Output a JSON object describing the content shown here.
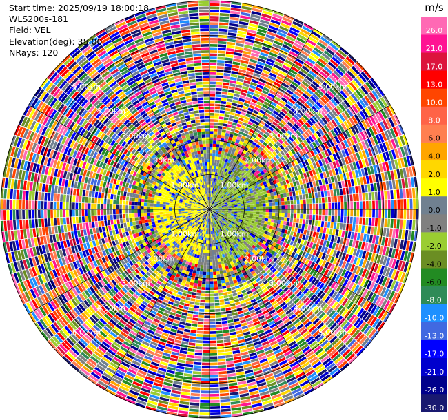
{
  "header": {
    "start_time": "Start time: 2025/09/19 18:00:18",
    "instrument": "WLS200s-181",
    "field": "Field: VEL",
    "elevation": "Elevation(deg): 35.00",
    "nrays": "NRays: 120"
  },
  "chart_data": {
    "type": "heatmap",
    "projection": "polar-ppi",
    "field": "VEL",
    "units": "m/s",
    "elevation_deg": 35.0,
    "n_rays": 120,
    "max_range_km": 6.0,
    "range_ring_labels": [
      "1.00km",
      "2.00km",
      "3.00km",
      "4.00km",
      "5.00km"
    ],
    "colorbar": {
      "title": "m/s",
      "boundaries": [
        -30.0,
        -26.0,
        -21.0,
        -17.0,
        -13.0,
        -10.0,
        -8.0,
        -6.0,
        -4.0,
        -2.0,
        -1.0,
        0.0,
        1.0,
        2.0,
        4.0,
        6.0,
        8.0,
        10.0,
        13.0,
        17.0,
        21.0,
        26.0,
        30.0
      ],
      "tick_labels": [
        "-30.0",
        "-26.0",
        "-21.0",
        "-17.0",
        "-13.0",
        "-10.0",
        "-8.0",
        "-6.0",
        "-4.0",
        "-2.0",
        "-1.0",
        "0.0",
        "1.0",
        "2.0",
        "4.0",
        "6.0",
        "8.0",
        "10.0",
        "13.0",
        "17.0",
        "21.0",
        "26.0"
      ],
      "colors": [
        "#191970",
        "#00008b",
        "#0000cd",
        "#0000ff",
        "#4169e1",
        "#1e90ff",
        "#2e8b57",
        "#228b22",
        "#6b8e23",
        "#9acd32",
        "#808080",
        "#708090",
        "#ffff00",
        "#ffd700",
        "#ffa500",
        "#ff7f50",
        "#ff6347",
        "#ff4500",
        "#ff0000",
        "#dc143c",
        "#ff1493",
        "#ff69b4"
      ]
    }
  }
}
